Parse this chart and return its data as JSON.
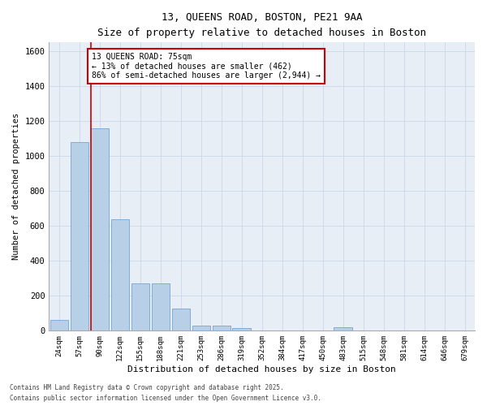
{
  "title_line1": "13, QUEENS ROAD, BOSTON, PE21 9AA",
  "title_line2": "Size of property relative to detached houses in Boston",
  "xlabel": "Distribution of detached houses by size in Boston",
  "ylabel": "Number of detached properties",
  "categories": [
    "24sqm",
    "57sqm",
    "90sqm",
    "122sqm",
    "155sqm",
    "188sqm",
    "221sqm",
    "253sqm",
    "286sqm",
    "319sqm",
    "352sqm",
    "384sqm",
    "417sqm",
    "450sqm",
    "483sqm",
    "515sqm",
    "548sqm",
    "581sqm",
    "614sqm",
    "646sqm",
    "679sqm"
  ],
  "values": [
    60,
    1080,
    1160,
    640,
    270,
    270,
    125,
    30,
    30,
    15,
    0,
    0,
    0,
    0,
    20,
    0,
    0,
    0,
    0,
    0,
    0
  ],
  "bar_color": "#b8cfe8",
  "bar_edge_color": "#6699cc",
  "red_line_x": 1.55,
  "annotation_text": "13 QUEENS ROAD: 75sqm\n← 13% of detached houses are smaller (462)\n86% of semi-detached houses are larger (2,944) →",
  "annotation_box_color": "#ffffff",
  "annotation_border_color": "#cc0000",
  "ylim": [
    0,
    1650
  ],
  "yticks": [
    0,
    200,
    400,
    600,
    800,
    1000,
    1200,
    1400,
    1600
  ],
  "grid_color": "#c8d8e8",
  "bg_color": "#e8eef5",
  "footer_line1": "Contains HM Land Registry data © Crown copyright and database right 2025.",
  "footer_line2": "Contains public sector information licensed under the Open Government Licence v3.0."
}
